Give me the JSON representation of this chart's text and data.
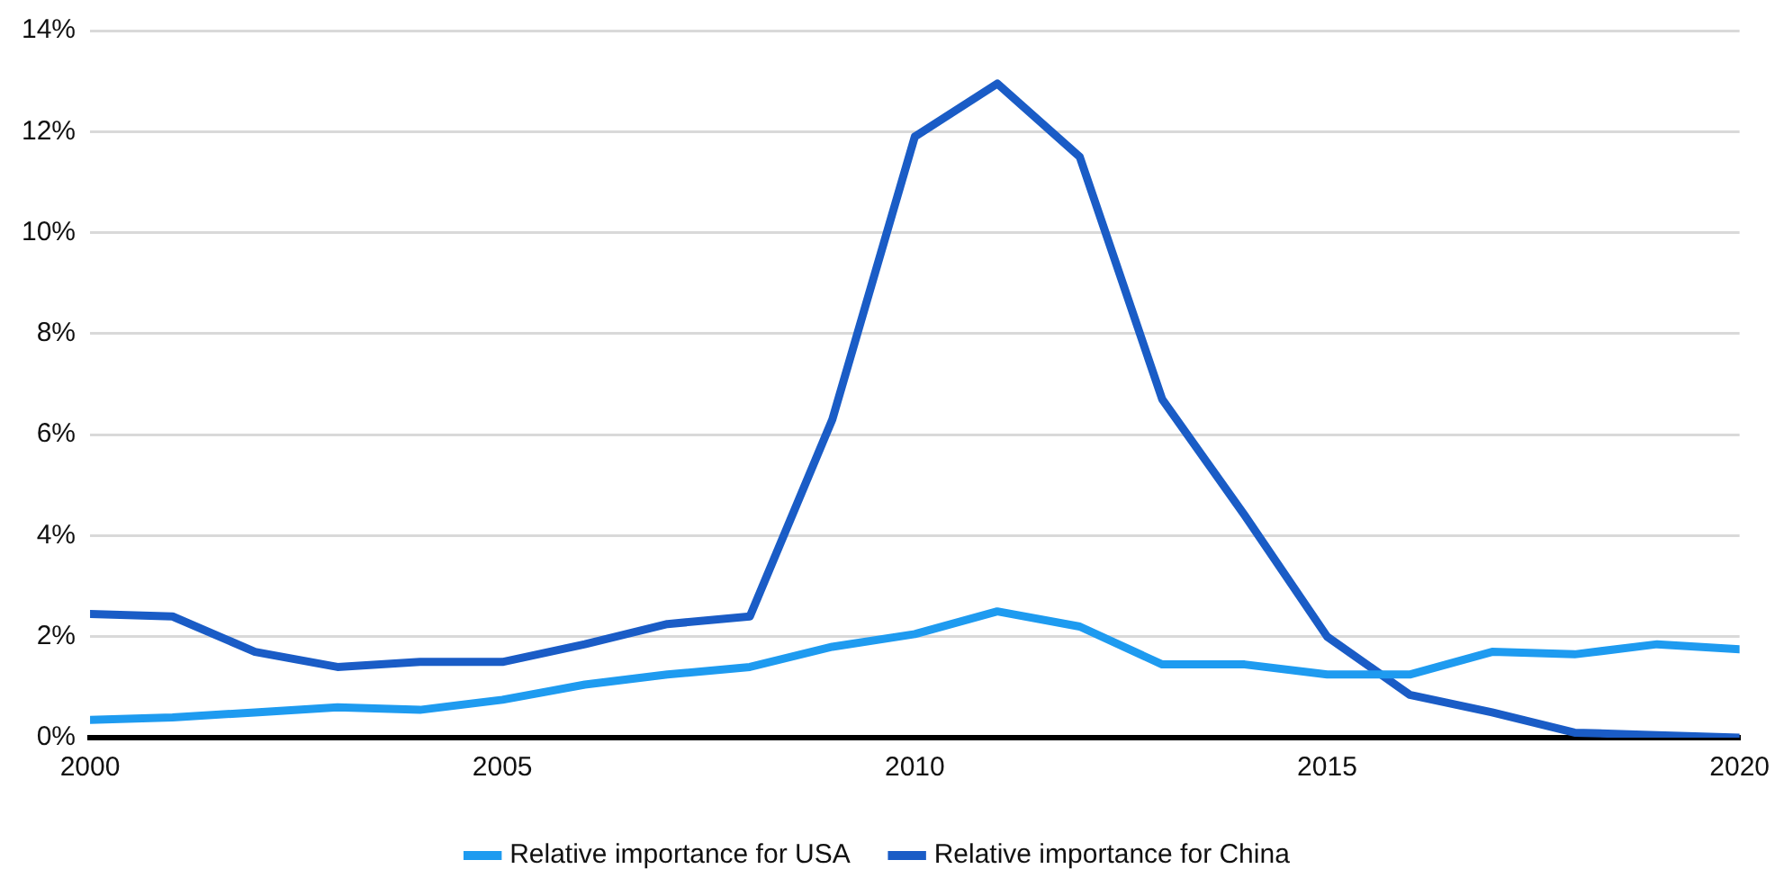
{
  "chart_data": {
    "type": "line",
    "x": [
      2000,
      2001,
      2002,
      2003,
      2004,
      2005,
      2006,
      2007,
      2008,
      2009,
      2010,
      2011,
      2012,
      2013,
      2014,
      2015,
      2016,
      2017,
      2018,
      2019,
      2020
    ],
    "series": [
      {
        "name": "Relative importance for USA",
        "color": "#1e9bf0",
        "values": [
          0.35,
          0.4,
          0.5,
          0.6,
          0.55,
          0.75,
          1.05,
          1.25,
          1.4,
          1.8,
          2.05,
          2.5,
          2.2,
          1.45,
          1.45,
          1.25,
          1.25,
          1.7,
          1.65,
          1.85,
          1.75
        ]
      },
      {
        "name": "Relative importance for China",
        "color": "#1a5cc6",
        "values": [
          2.45,
          2.4,
          1.7,
          1.4,
          1.5,
          1.5,
          1.85,
          2.25,
          2.4,
          6.3,
          11.9,
          12.95,
          11.5,
          6.7,
          4.4,
          2.0,
          0.85,
          0.5,
          0.1,
          0.05,
          0.0
        ]
      }
    ],
    "xlim": [
      2000,
      2020
    ],
    "xticks": [
      2000,
      2005,
      2010,
      2015,
      2020
    ],
    "ylim": [
      0,
      14
    ],
    "yticks": [
      {
        "value": 0,
        "label": "0%"
      },
      {
        "value": 2,
        "label": "2%"
      },
      {
        "value": 4,
        "label": "4%"
      },
      {
        "value": 6,
        "label": "6%"
      },
      {
        "value": 8,
        "label": "8%"
      },
      {
        "value": 10,
        "label": "10%"
      },
      {
        "value": 12,
        "label": "12%"
      },
      {
        "value": 14,
        "label": "14%"
      }
    ],
    "grid": "y",
    "legend": "bottom",
    "marker": "none",
    "line_style": "solid"
  }
}
